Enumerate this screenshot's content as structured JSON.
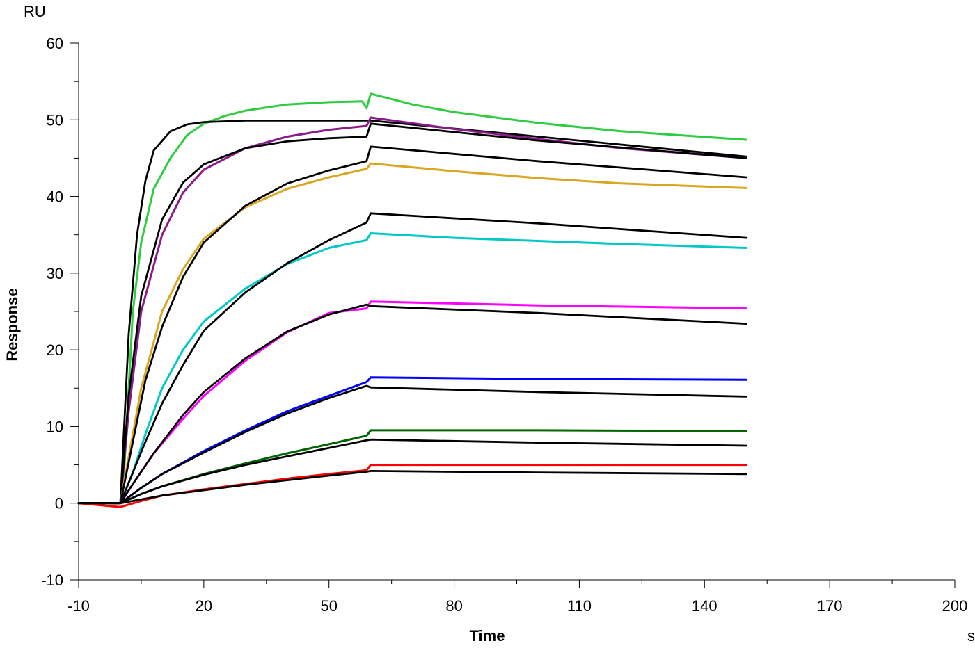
{
  "chart_data": {
    "type": "line",
    "xlabel": "Time",
    "ylabel": "Response",
    "x_unit": "s",
    "y_unit": "RU",
    "xlim": [
      -10,
      200
    ],
    "ylim": [
      -10,
      60
    ],
    "x_ticks": [
      -10,
      20,
      50,
      80,
      110,
      140,
      170,
      200
    ],
    "y_ticks": [
      -10,
      0,
      10,
      20,
      30,
      40,
      50,
      60
    ],
    "grid": false,
    "legend": "none",
    "baseline_end_x": 0,
    "association_end_x": 60,
    "end_x": 150,
    "series": [
      {
        "color": "#2ecc40",
        "kind": "data",
        "points": [
          [
            -10,
            0
          ],
          [
            0,
            0
          ],
          [
            1,
            5
          ],
          [
            3,
            25
          ],
          [
            5,
            34
          ],
          [
            8,
            41
          ],
          [
            12,
            45
          ],
          [
            16,
            48
          ],
          [
            20,
            49.5
          ],
          [
            25,
            50.5
          ],
          [
            30,
            51.2
          ],
          [
            40,
            52
          ],
          [
            50,
            52.3
          ],
          [
            58,
            52.4
          ],
          [
            59,
            51.5
          ],
          [
            60,
            53.4
          ],
          [
            70,
            52
          ],
          [
            80,
            51
          ],
          [
            100,
            49.6
          ],
          [
            120,
            48.5
          ],
          [
            150,
            47.4
          ]
        ]
      },
      {
        "color": "#000000",
        "kind": "fit",
        "points": [
          [
            -10,
            0
          ],
          [
            0,
            0
          ],
          [
            2,
            22
          ],
          [
            4,
            35
          ],
          [
            6,
            42
          ],
          [
            8,
            46
          ],
          [
            12,
            48.5
          ],
          [
            16,
            49.4
          ],
          [
            20,
            49.7
          ],
          [
            30,
            49.9
          ],
          [
            60,
            49.9
          ],
          [
            100,
            47.8
          ],
          [
            150,
            45.2
          ]
        ]
      },
      {
        "color": "#8b1a8b",
        "kind": "data",
        "points": [
          [
            -10,
            0
          ],
          [
            0,
            0
          ],
          [
            2,
            12
          ],
          [
            5,
            25
          ],
          [
            10,
            35
          ],
          [
            15,
            40.5
          ],
          [
            20,
            43.5
          ],
          [
            30,
            46.3
          ],
          [
            40,
            47.8
          ],
          [
            50,
            48.7
          ],
          [
            59,
            49.2
          ],
          [
            60,
            50.3
          ],
          [
            80,
            48.8
          ],
          [
            100,
            47.5
          ],
          [
            120,
            46.3
          ],
          [
            150,
            45
          ]
        ]
      },
      {
        "color": "#000000",
        "kind": "fit",
        "points": [
          [
            -10,
            0
          ],
          [
            0,
            0
          ],
          [
            2,
            14
          ],
          [
            5,
            27
          ],
          [
            10,
            37
          ],
          [
            15,
            41.8
          ],
          [
            20,
            44.2
          ],
          [
            30,
            46.3
          ],
          [
            40,
            47.2
          ],
          [
            50,
            47.6
          ],
          [
            59,
            47.8
          ],
          [
            60,
            49.5
          ],
          [
            100,
            47.3
          ],
          [
            150,
            45
          ]
        ]
      },
      {
        "color": "#daa520",
        "kind": "data",
        "points": [
          [
            -10,
            0
          ],
          [
            0,
            0
          ],
          [
            2,
            6
          ],
          [
            5,
            15
          ],
          [
            10,
            25
          ],
          [
            15,
            30.5
          ],
          [
            20,
            34.5
          ],
          [
            30,
            38.6
          ],
          [
            40,
            41
          ],
          [
            50,
            42.5
          ],
          [
            59,
            43.6
          ],
          [
            60,
            44.3
          ],
          [
            80,
            43.3
          ],
          [
            100,
            42.4
          ],
          [
            120,
            41.7
          ],
          [
            150,
            41.1
          ]
        ]
      },
      {
        "color": "#000000",
        "kind": "fit",
        "points": [
          [
            -10,
            0
          ],
          [
            0,
            0
          ],
          [
            3,
            8
          ],
          [
            6,
            16
          ],
          [
            10,
            23
          ],
          [
            15,
            29.5
          ],
          [
            20,
            34
          ],
          [
            30,
            38.8
          ],
          [
            40,
            41.7
          ],
          [
            50,
            43.4
          ],
          [
            59,
            44.6
          ],
          [
            60,
            46.5
          ],
          [
            100,
            44.6
          ],
          [
            150,
            42.5
          ]
        ]
      },
      {
        "color": "#00c8c8",
        "kind": "data",
        "points": [
          [
            -10,
            0
          ],
          [
            0,
            0
          ],
          [
            3,
            4
          ],
          [
            6,
            9
          ],
          [
            10,
            15
          ],
          [
            15,
            20
          ],
          [
            20,
            23.7
          ],
          [
            30,
            28
          ],
          [
            40,
            31.2
          ],
          [
            50,
            33.3
          ],
          [
            59,
            34.3
          ],
          [
            60,
            35.2
          ],
          [
            80,
            34.6
          ],
          [
            100,
            34.2
          ],
          [
            120,
            33.8
          ],
          [
            150,
            33.3
          ]
        ]
      },
      {
        "color": "#000000",
        "kind": "fit",
        "points": [
          [
            -10,
            0
          ],
          [
            0,
            0
          ],
          [
            3,
            4
          ],
          [
            6,
            8
          ],
          [
            10,
            13
          ],
          [
            15,
            18
          ],
          [
            20,
            22.5
          ],
          [
            30,
            27.5
          ],
          [
            40,
            31.3
          ],
          [
            50,
            34.3
          ],
          [
            59,
            36.6
          ],
          [
            60,
            37.8
          ],
          [
            100,
            36.5
          ],
          [
            150,
            34.6
          ]
        ]
      },
      {
        "color": "#ff00ff",
        "kind": "data",
        "points": [
          [
            -10,
            0
          ],
          [
            0,
            0
          ],
          [
            3,
            2.5
          ],
          [
            8,
            6.5
          ],
          [
            15,
            11
          ],
          [
            20,
            14
          ],
          [
            30,
            18.6
          ],
          [
            40,
            22.3
          ],
          [
            50,
            24.8
          ],
          [
            59,
            25.4
          ],
          [
            60,
            26.3
          ],
          [
            100,
            25.8
          ],
          [
            150,
            25.4
          ]
        ]
      },
      {
        "color": "#000000",
        "kind": "fit",
        "points": [
          [
            -10,
            0
          ],
          [
            0,
            0
          ],
          [
            3,
            2.5
          ],
          [
            8,
            6.5
          ],
          [
            15,
            11.5
          ],
          [
            20,
            14.5
          ],
          [
            30,
            18.9
          ],
          [
            40,
            22.4
          ],
          [
            50,
            24.6
          ],
          [
            59,
            25.9
          ],
          [
            60,
            25.7
          ],
          [
            100,
            24.8
          ],
          [
            150,
            23.4
          ]
        ]
      },
      {
        "color": "#0000ff",
        "kind": "data",
        "points": [
          [
            -10,
            0
          ],
          [
            0,
            0
          ],
          [
            5,
            2
          ],
          [
            10,
            3.8
          ],
          [
            20,
            6.8
          ],
          [
            30,
            9.5
          ],
          [
            40,
            12
          ],
          [
            50,
            14
          ],
          [
            59,
            15.8
          ],
          [
            60,
            16.4
          ],
          [
            100,
            16.2
          ],
          [
            150,
            16.1
          ]
        ]
      },
      {
        "color": "#000000",
        "kind": "fit",
        "points": [
          [
            -10,
            0
          ],
          [
            0,
            0
          ],
          [
            5,
            2
          ],
          [
            10,
            3.8
          ],
          [
            20,
            6.6
          ],
          [
            30,
            9.3
          ],
          [
            40,
            11.7
          ],
          [
            50,
            13.7
          ],
          [
            59,
            15.3
          ],
          [
            60,
            15.1
          ],
          [
            100,
            14.5
          ],
          [
            150,
            13.9
          ]
        ]
      },
      {
        "color": "#006400",
        "kind": "data",
        "points": [
          [
            -10,
            0
          ],
          [
            0,
            0
          ],
          [
            5,
            1.2
          ],
          [
            10,
            2.2
          ],
          [
            20,
            3.8
          ],
          [
            30,
            5.2
          ],
          [
            40,
            6.5
          ],
          [
            50,
            7.7
          ],
          [
            59,
            8.8
          ],
          [
            60,
            9.5
          ],
          [
            100,
            9.5
          ],
          [
            150,
            9.4
          ]
        ]
      },
      {
        "color": "#000000",
        "kind": "fit",
        "points": [
          [
            -10,
            0
          ],
          [
            0,
            0
          ],
          [
            5,
            1.2
          ],
          [
            10,
            2.2
          ],
          [
            20,
            3.7
          ],
          [
            30,
            5
          ],
          [
            40,
            6.1
          ],
          [
            50,
            7.2
          ],
          [
            59,
            8.2
          ],
          [
            60,
            8.3
          ],
          [
            100,
            7.9
          ],
          [
            150,
            7.5
          ]
        ]
      },
      {
        "color": "#ff0000",
        "kind": "data",
        "points": [
          [
            -10,
            0
          ],
          [
            0,
            -0.5
          ],
          [
            5,
            0.3
          ],
          [
            10,
            1
          ],
          [
            20,
            1.8
          ],
          [
            30,
            2.5
          ],
          [
            40,
            3.2
          ],
          [
            50,
            3.8
          ],
          [
            59,
            4.3
          ],
          [
            60,
            5
          ],
          [
            100,
            5
          ],
          [
            150,
            5
          ]
        ]
      },
      {
        "color": "#000000",
        "kind": "fit",
        "points": [
          [
            -10,
            0
          ],
          [
            0,
            0
          ],
          [
            5,
            0.5
          ],
          [
            10,
            1
          ],
          [
            20,
            1.7
          ],
          [
            30,
            2.4
          ],
          [
            40,
            3
          ],
          [
            50,
            3.6
          ],
          [
            59,
            4.1
          ],
          [
            60,
            4.2
          ],
          [
            100,
            4
          ],
          [
            150,
            3.8
          ]
        ]
      }
    ]
  }
}
